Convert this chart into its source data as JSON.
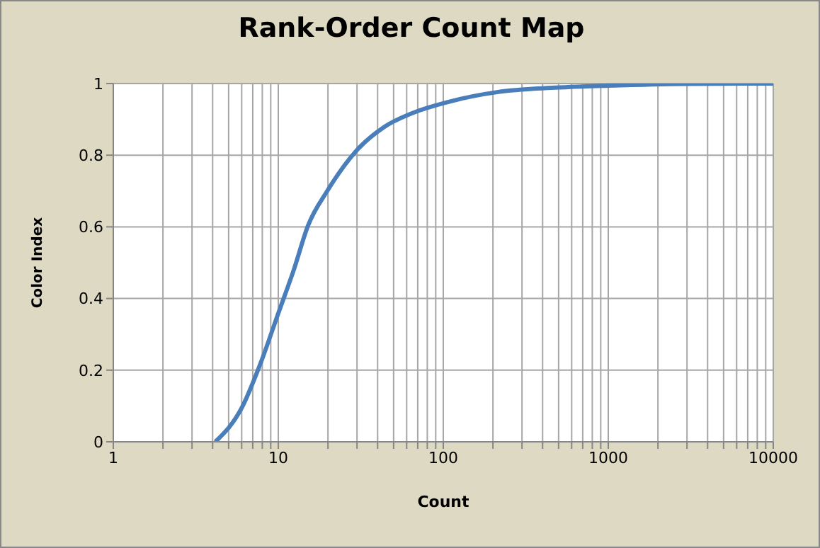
{
  "chart_data": {
    "type": "line",
    "title": "Rank-Order Count Map",
    "xlabel": "Count",
    "ylabel": "Color Index",
    "x": [
      4.15,
      6.04,
      7.85,
      9.9,
      12.5,
      15.1,
      19.8,
      29.4,
      43.6,
      64.6,
      110,
      212,
      569,
      1000,
      2950,
      10000
    ],
    "series": [
      {
        "color": "#4a7ebb",
        "values": [
          0,
          0.097,
          0.222,
          0.353,
          0.484,
          0.602,
          0.7,
          0.81,
          0.878,
          0.917,
          0.95,
          0.976,
          0.99,
          0.994,
          0.999,
          1
        ]
      }
    ],
    "log": "x",
    "xlim": [
      1,
      10000
    ],
    "xticks": [
      1,
      {
        "value": 2,
        "label": null
      },
      {
        "value": 3,
        "label": null
      },
      {
        "value": 4,
        "label": null
      },
      {
        "value": 5,
        "label": null
      },
      {
        "value": 6,
        "label": null
      },
      {
        "value": 7,
        "label": null
      },
      {
        "value": 8,
        "label": null
      },
      {
        "value": 9,
        "label": null
      },
      10,
      {
        "value": 20,
        "label": null
      },
      {
        "value": 30,
        "label": null
      },
      {
        "value": 40,
        "label": null
      },
      {
        "value": 50,
        "label": null
      },
      {
        "value": 60,
        "label": null
      },
      {
        "value": 70,
        "label": null
      },
      {
        "value": 80,
        "label": null
      },
      {
        "value": 90,
        "label": null
      },
      100,
      {
        "value": 200,
        "label": null
      },
      {
        "value": 300,
        "label": null
      },
      {
        "value": 400,
        "label": null
      },
      {
        "value": 500,
        "label": null
      },
      {
        "value": 600,
        "label": null
      },
      {
        "value": 700,
        "label": null
      },
      {
        "value": 800,
        "label": null
      },
      {
        "value": 900,
        "label": null
      },
      1000,
      {
        "value": 2000,
        "label": null
      },
      {
        "value": 3000,
        "label": null
      },
      {
        "value": 4000,
        "label": null
      },
      {
        "value": 5000,
        "label": null
      },
      {
        "value": 6000,
        "label": null
      },
      {
        "value": 7000,
        "label": null
      },
      {
        "value": 8000,
        "label": null
      },
      {
        "value": 9000,
        "label": null
      },
      10000
    ],
    "ylim": [
      0,
      1
    ],
    "yticks": [
      0,
      0.2,
      0.4,
      0.6,
      0.8,
      1
    ],
    "grid": true,
    "marker": "none",
    "line_style": "solid",
    "legend": false
  }
}
